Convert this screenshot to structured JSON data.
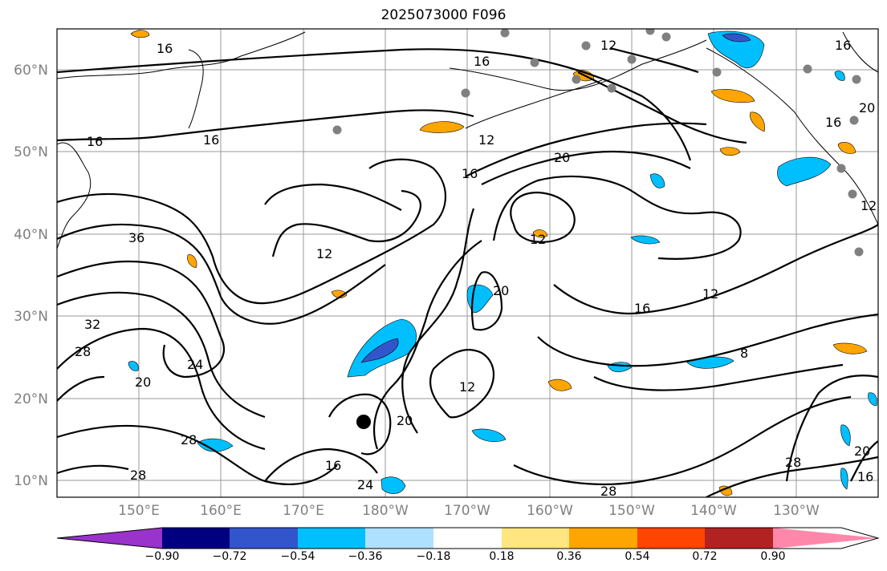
{
  "title": "2025073000 F096",
  "latitude_labels": [
    "10°N",
    "20°N",
    "30°N",
    "40°N",
    "50°N",
    "60°N"
  ],
  "longitude_labels": [
    "150°E",
    "160°E",
    "170°E",
    "180°W",
    "170°W",
    "160°W",
    "150°W",
    "140°W",
    "130°W"
  ],
  "contour_labels": [
    "16",
    "16",
    "16",
    "16",
    "16",
    "16",
    "16",
    "16",
    "12",
    "12",
    "12",
    "12",
    "12",
    "12",
    "20",
    "20",
    "20",
    "20",
    "20",
    "36",
    "32",
    "28",
    "28",
    "28",
    "28",
    "28",
    "24",
    "24",
    "12",
    "8",
    "16",
    "16",
    "20"
  ],
  "colorbar": {
    "tick_labels": [
      "−0.90",
      "−0.72",
      "−0.54",
      "−0.36",
      "−0.18",
      "0.18",
      "0.36",
      "0.54",
      "0.72",
      "0.90"
    ],
    "colors": [
      "#9933cc",
      "#000080",
      "#3355cc",
      "#00bfff",
      "#aee0ff",
      "#ffffff",
      "#ffe680",
      "#ffa500",
      "#ff4500",
      "#b22222",
      "#ff88aa"
    ]
  },
  "fill_colors": {
    "orange": "#ffa500",
    "light_blue": "#00bfff",
    "pale_blue": "#aee0ff",
    "blue": "#3355cc"
  },
  "marker_color": "#808080"
}
